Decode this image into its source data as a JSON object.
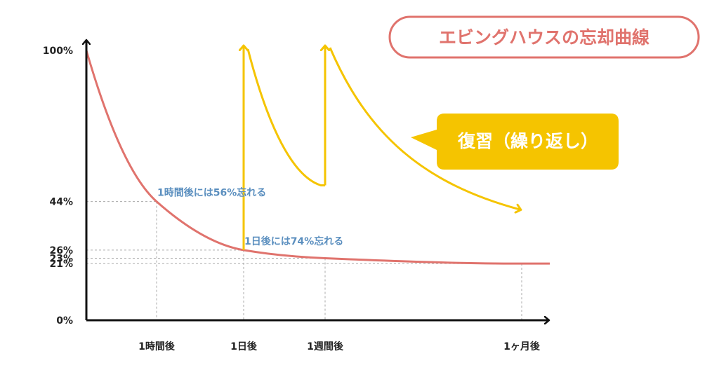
{
  "chart_data": {
    "type": "line",
    "title": "エビングハウスの忘却曲線",
    "callout": "復習（繰り返し）",
    "y_ticks": [
      "100%",
      "44%",
      "26%",
      "23%",
      "21%",
      "0%"
    ],
    "x_ticks": [
      "1時間後",
      "1日後",
      "1週間後",
      "1ヶ月後"
    ],
    "ylim": [
      0,
      100
    ],
    "grid": "dashed guides at marked points",
    "series": [
      {
        "values": [
          {
            "x": "開始",
            "y": 100
          },
          {
            "x": "1時間後",
            "y": 44
          },
          {
            "x": "1日後",
            "y": 26
          },
          {
            "x": "1週間後",
            "y": 23
          },
          {
            "x": "1ヶ月後",
            "y": 21
          }
        ]
      }
    ],
    "annotations": [
      {
        "text": "1時間後には56%忘れる",
        "x": "1時間後",
        "y": 44
      },
      {
        "text": "1日後には74%忘れる",
        "x": "1日後",
        "y": 26
      }
    ],
    "review_curve": "復習で記憶が100%に戻る（1日後・1週間後）",
    "colors": {
      "curve": "#e0736d",
      "review": "#f5c400",
      "annotation": "#5b8fbf",
      "axis": "#111111",
      "grid": "#aaaaaa",
      "title_border": "#e0736d",
      "callout_fill": "#f5c400"
    }
  }
}
